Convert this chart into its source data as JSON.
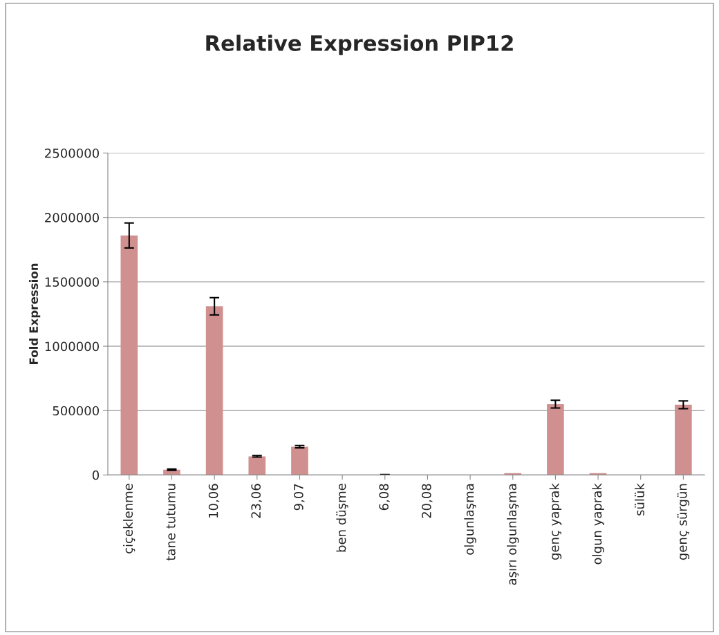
{
  "chart_data": {
    "type": "bar",
    "title": "Relative Expression PIP12",
    "ylabel": "Fold Expression",
    "categories": [
      "çiçeklenme",
      "tane tutumu",
      "10,06",
      "23,06",
      "9,07",
      "ben düşme",
      "6,08",
      "20,08",
      "olgunlaşma",
      "aşırı olgunlaşma",
      "genç yaprak",
      "olgun yaprak",
      "sülük",
      "genç sürgün"
    ],
    "values": [
      1860000,
      41000,
      1310000,
      145000,
      220000,
      0,
      2000,
      0,
      0,
      14000,
      550000,
      14000,
      0,
      545000
    ],
    "errors": [
      97000,
      5000,
      67000,
      6000,
      9000,
      null,
      1000,
      null,
      null,
      null,
      30000,
      null,
      null,
      30000
    ],
    "color": "#d09090",
    "ylim": [
      0,
      2500000
    ],
    "yticks": [
      0,
      500000,
      1000000,
      1500000,
      2000000,
      2500000
    ],
    "grid": "y"
  }
}
